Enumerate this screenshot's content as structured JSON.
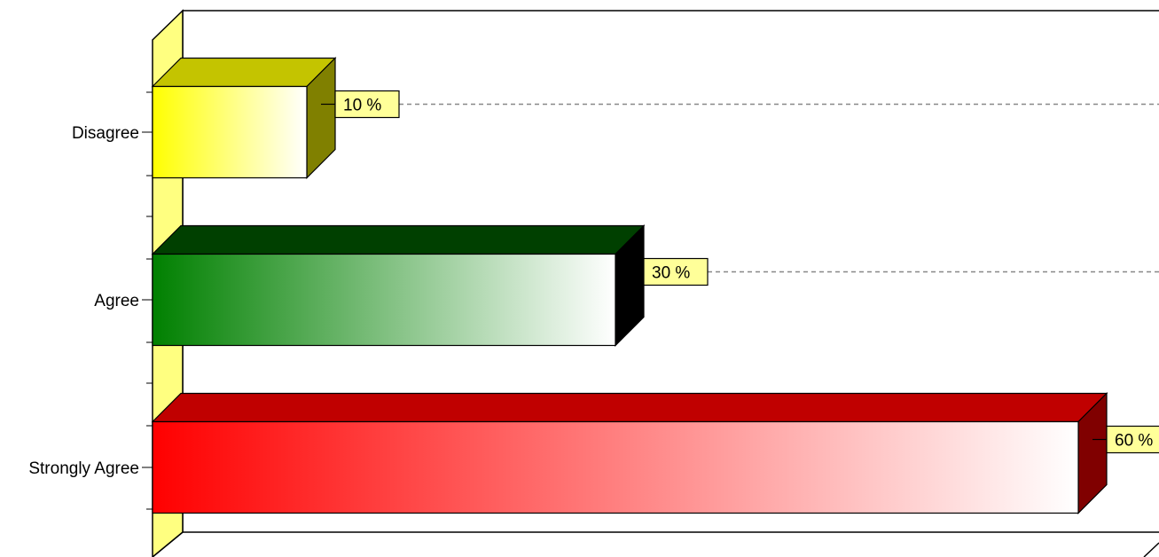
{
  "chart_data": {
    "type": "bar",
    "orientation": "horizontal",
    "style": "3d",
    "categories": [
      "Disagree",
      "Agree",
      "Strongly Agree"
    ],
    "values": [
      10,
      30,
      60
    ],
    "value_labels": [
      "10 %",
      "30 %",
      "60 %"
    ],
    "unit": "%",
    "xlim": [
      0,
      60
    ],
    "grid": "horizontal dashed",
    "colors": {
      "Disagree": {
        "front": "#ffff00",
        "top": "#c4c400",
        "side": "#808000"
      },
      "Agree": {
        "front": "#008000",
        "top": "#004000",
        "side": "#000000"
      },
      "Strongly Agree": {
        "front": "#ff0000",
        "top": "#c00000",
        "side": "#800000"
      }
    },
    "label_box_color": "#ffff99",
    "wall_color": "#ffff80"
  }
}
